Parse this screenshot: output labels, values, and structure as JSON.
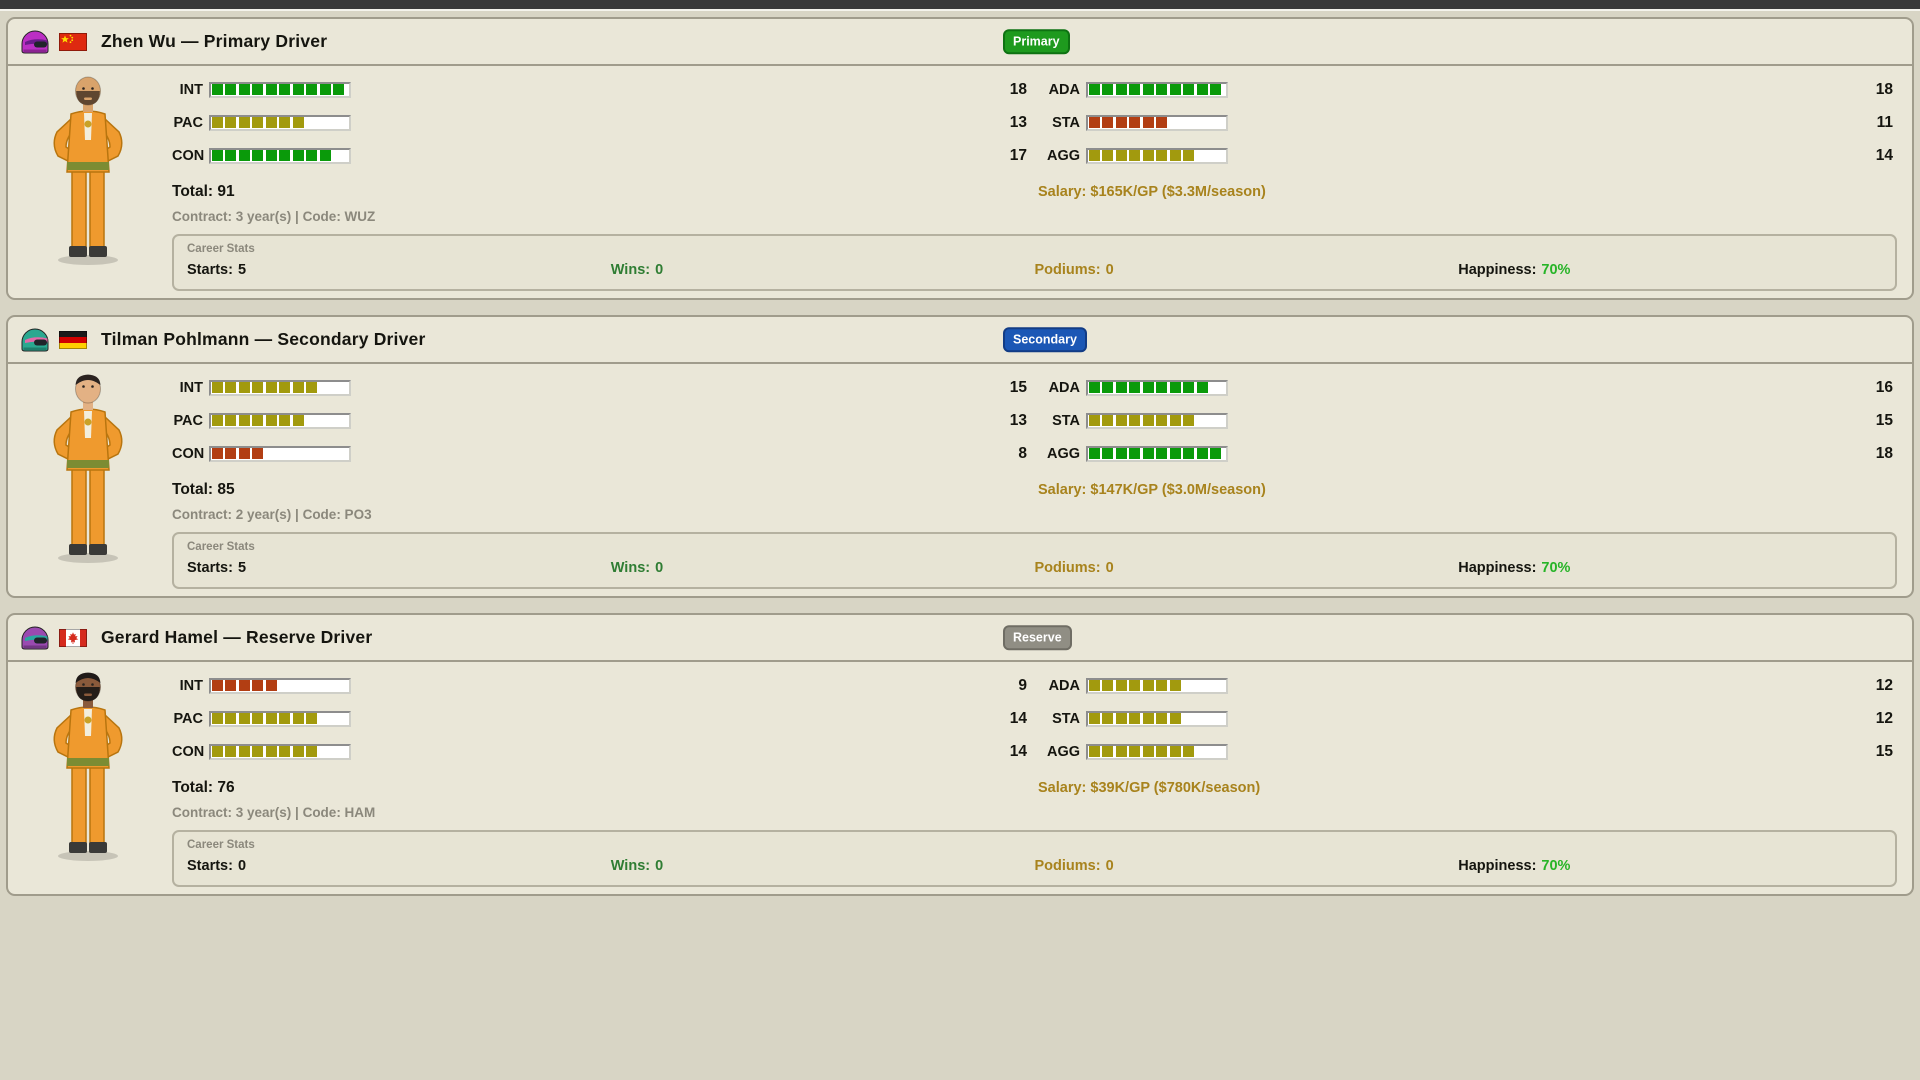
{
  "colors": {
    "bar_high": "#0a9a0a",
    "bar_mid": "#a29a0e",
    "bar_low": "#b23e13",
    "gold": "#a8831d",
    "wins_green": "#2f7d33",
    "happiness_green": "#27b427"
  },
  "stat_bar": {
    "slots": 10,
    "points_per_segment": 1.8,
    "high_min": 16,
    "mid_min": 12
  },
  "drivers": [
    {
      "title": "Zhen Wu — Primary Driver",
      "badge": {
        "label": "Primary",
        "bg": "#1e9a1e",
        "border": "#0e7212"
      },
      "flag": "china",
      "helmet": {
        "main": "#bb2fc4",
        "accent": "#6a1b8a"
      },
      "avatar": {
        "skin": "#d9a36b",
        "hair": null,
        "beard": "#5f4630"
      },
      "stats_left": [
        {
          "label": "INT",
          "value": 18
        },
        {
          "label": "PAC",
          "value": 13
        },
        {
          "label": "CON",
          "value": 17
        }
      ],
      "stats_right": [
        {
          "label": "ADA",
          "value": 18
        },
        {
          "label": "STA",
          "value": 11
        },
        {
          "label": "AGG",
          "value": 14
        }
      ],
      "total": "Total: 91",
      "contract": "Contract: 3 year(s) | Code: WUZ",
      "salary": "Salary: $165K/GP ($3.3M/season)",
      "career": {
        "title": "Career Stats",
        "starts_label": "Starts:",
        "starts_value": "5",
        "wins_label": "Wins:",
        "wins_value": "0",
        "podiums_label": "Podiums:",
        "podiums_value": "0",
        "happiness_label": "Happiness:",
        "happiness_value": "70%"
      }
    },
    {
      "title": "Tilman Pohlmann — Secondary Driver",
      "badge": {
        "label": "Secondary",
        "bg": "#1b57b5",
        "border": "#123c85"
      },
      "flag": "germany",
      "helmet": {
        "main": "#2aa890",
        "accent": "#e06aa8"
      },
      "avatar": {
        "skin": "#e3b184",
        "hair": "#2b2320",
        "beard": null
      },
      "stats_left": [
        {
          "label": "INT",
          "value": 15
        },
        {
          "label": "PAC",
          "value": 13
        },
        {
          "label": "CON",
          "value": 8
        }
      ],
      "stats_right": [
        {
          "label": "ADA",
          "value": 16
        },
        {
          "label": "STA",
          "value": 15
        },
        {
          "label": "AGG",
          "value": 18
        }
      ],
      "total": "Total: 85",
      "contract": "Contract: 2 year(s) | Code: PO3",
      "salary": "Salary: $147K/GP ($3.0M/season)",
      "career": {
        "title": "Career Stats",
        "starts_label": "Starts:",
        "starts_value": "5",
        "wins_label": "Wins:",
        "wins_value": "0",
        "podiums_label": "Podiums:",
        "podiums_value": "0",
        "happiness_label": "Happiness:",
        "happiness_value": "70%"
      }
    },
    {
      "title": "Gerard Hamel — Reserve Driver",
      "badge": {
        "label": "Reserve",
        "bg": "#908e84",
        "border": "#6f6d64"
      },
      "flag": "canada",
      "helmet": {
        "main": "#9a4ab0",
        "accent": "#2aa8a0"
      },
      "avatar": {
        "skin": "#8a5a3b",
        "hair": "#1f1a18",
        "beard": "#241d18"
      },
      "stats_left": [
        {
          "label": "INT",
          "value": 9
        },
        {
          "label": "PAC",
          "value": 14
        },
        {
          "label": "CON",
          "value": 14
        }
      ],
      "stats_right": [
        {
          "label": "ADA",
          "value": 12
        },
        {
          "label": "STA",
          "value": 12
        },
        {
          "label": "AGG",
          "value": 15
        }
      ],
      "total": "Total: 76",
      "contract": "Contract: 3 year(s) | Code: HAM",
      "salary": "Salary: $39K/GP ($780K/season)",
      "career": {
        "title": "Career Stats",
        "starts_label": "Starts:",
        "starts_value": "0",
        "wins_label": "Wins:",
        "wins_value": "0",
        "podiums_label": "Podiums:",
        "podiums_value": "0",
        "happiness_label": "Happiness:",
        "happiness_value": "70%"
      }
    }
  ]
}
